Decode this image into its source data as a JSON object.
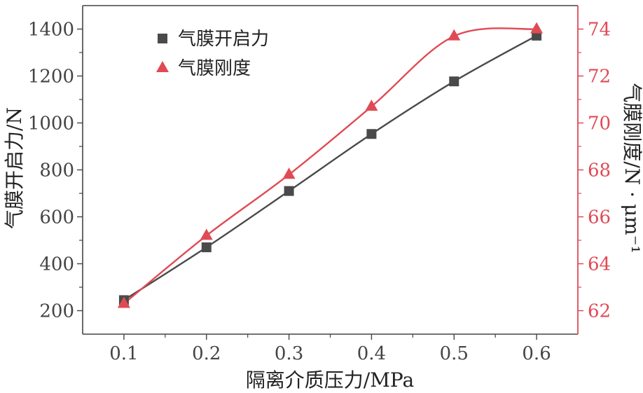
{
  "chart_data": {
    "type": "line",
    "xlabel": "隔离介质压力/MPa",
    "ylabel_left": "气膜开启力/N",
    "ylabel_right": "气膜刚度/N · μm⁻¹",
    "x_ticks": [
      0.1,
      0.2,
      0.3,
      0.4,
      0.5,
      0.6
    ],
    "x_tick_labels": [
      "0.1",
      "0.2",
      "0.3",
      "0.4",
      "0.5",
      "0.6"
    ],
    "xlim": [
      0.05,
      0.65
    ],
    "y_left_ticks": [
      200,
      400,
      600,
      800,
      1000,
      1200,
      1400
    ],
    "y_left_tick_labels": [
      "200",
      "400",
      "600",
      "800",
      "1000",
      "1200",
      "1400"
    ],
    "ylim_left": [
      100,
      1500
    ],
    "y_right_ticks": [
      62,
      64,
      66,
      68,
      70,
      72,
      74
    ],
    "y_right_tick_labels": [
      "62",
      "64",
      "66",
      "68",
      "70",
      "72",
      "74"
    ],
    "ylim_right": [
      61,
      75
    ],
    "legend_position": "top-left",
    "grid": false,
    "series": [
      {
        "name": "气膜开启力",
        "axis": "left",
        "marker": "square",
        "color": "#4a4a4a",
        "x": [
          0.1,
          0.2,
          0.3,
          0.4,
          0.5,
          0.6
        ],
        "values": [
          245,
          470,
          710,
          953,
          1177,
          1372
        ]
      },
      {
        "name": "气膜刚度",
        "axis": "right",
        "marker": "triangle",
        "color": "#e04a55",
        "x": [
          0.1,
          0.2,
          0.3,
          0.4,
          0.5,
          0.6
        ],
        "values": [
          62.3,
          65.2,
          67.8,
          70.7,
          73.7,
          74.0
        ]
      }
    ]
  }
}
